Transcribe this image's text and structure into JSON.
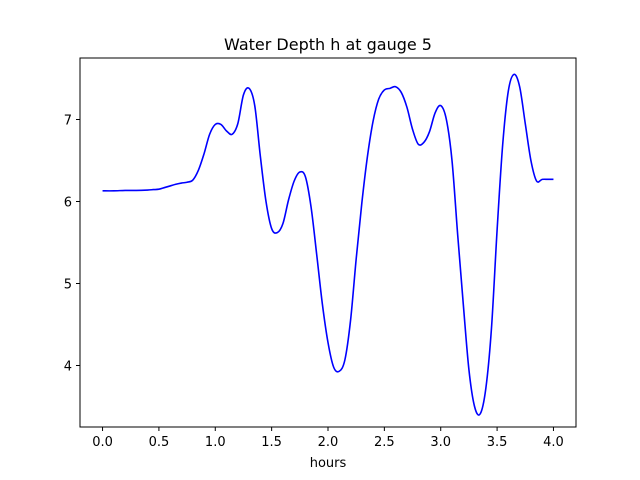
{
  "chart_data": {
    "type": "line",
    "title": "Water Depth h at gauge 5",
    "xlabel": "hours",
    "ylabel": "",
    "xlim": [
      -0.2,
      4.2
    ],
    "ylim": [
      3.25,
      7.75
    ],
    "xticks": [
      {
        "value": 0.0,
        "label": "0.0"
      },
      {
        "value": 0.5,
        "label": "0.5"
      },
      {
        "value": 1.0,
        "label": "1.0"
      },
      {
        "value": 1.5,
        "label": "1.5"
      },
      {
        "value": 2.0,
        "label": "2.0"
      },
      {
        "value": 2.5,
        "label": "2.5"
      },
      {
        "value": 3.0,
        "label": "3.0"
      },
      {
        "value": 3.5,
        "label": "3.5"
      },
      {
        "value": 4.0,
        "label": "4.0"
      }
    ],
    "yticks": [
      {
        "value": 4,
        "label": "4"
      },
      {
        "value": 5,
        "label": "5"
      },
      {
        "value": 6,
        "label": "6"
      },
      {
        "value": 7,
        "label": "7"
      }
    ],
    "grid": false,
    "series": [
      {
        "color": "#0000ff",
        "x": [
          0.0,
          0.1,
          0.2,
          0.3,
          0.4,
          0.45,
          0.5,
          0.55,
          0.6,
          0.65,
          0.7,
          0.75,
          0.8,
          0.85,
          0.9,
          0.95,
          1.0,
          1.05,
          1.1,
          1.15,
          1.2,
          1.25,
          1.3,
          1.35,
          1.4,
          1.45,
          1.5,
          1.55,
          1.6,
          1.65,
          1.7,
          1.75,
          1.8,
          1.85,
          1.9,
          1.95,
          2.0,
          2.05,
          2.1,
          2.15,
          2.2,
          2.25,
          2.3,
          2.35,
          2.4,
          2.45,
          2.5,
          2.55,
          2.6,
          2.65,
          2.7,
          2.75,
          2.8,
          2.85,
          2.9,
          2.95,
          3.0,
          3.05,
          3.1,
          3.15,
          3.2,
          3.25,
          3.3,
          3.35,
          3.4,
          3.45,
          3.5,
          3.55,
          3.6,
          3.65,
          3.7,
          3.75,
          3.8,
          3.85,
          3.9,
          3.95,
          4.0
        ],
        "y": [
          6.13,
          6.13,
          6.135,
          6.135,
          6.14,
          6.145,
          6.15,
          6.17,
          6.19,
          6.21,
          6.225,
          6.235,
          6.26,
          6.38,
          6.58,
          6.82,
          6.94,
          6.94,
          6.86,
          6.82,
          6.95,
          7.3,
          7.38,
          7.17,
          6.55,
          6.0,
          5.67,
          5.62,
          5.73,
          6.02,
          6.25,
          6.36,
          6.3,
          5.93,
          5.35,
          4.75,
          4.28,
          3.98,
          3.93,
          4.07,
          4.55,
          5.3,
          5.98,
          6.55,
          6.98,
          7.25,
          7.36,
          7.38,
          7.4,
          7.33,
          7.15,
          6.88,
          6.7,
          6.72,
          6.85,
          7.08,
          7.17,
          7.0,
          6.5,
          5.6,
          4.75,
          3.95,
          3.5,
          3.41,
          3.72,
          4.45,
          5.65,
          6.7,
          7.35,
          7.55,
          7.4,
          6.95,
          6.5,
          6.25,
          6.27,
          6.27,
          6.27
        ]
      }
    ]
  }
}
